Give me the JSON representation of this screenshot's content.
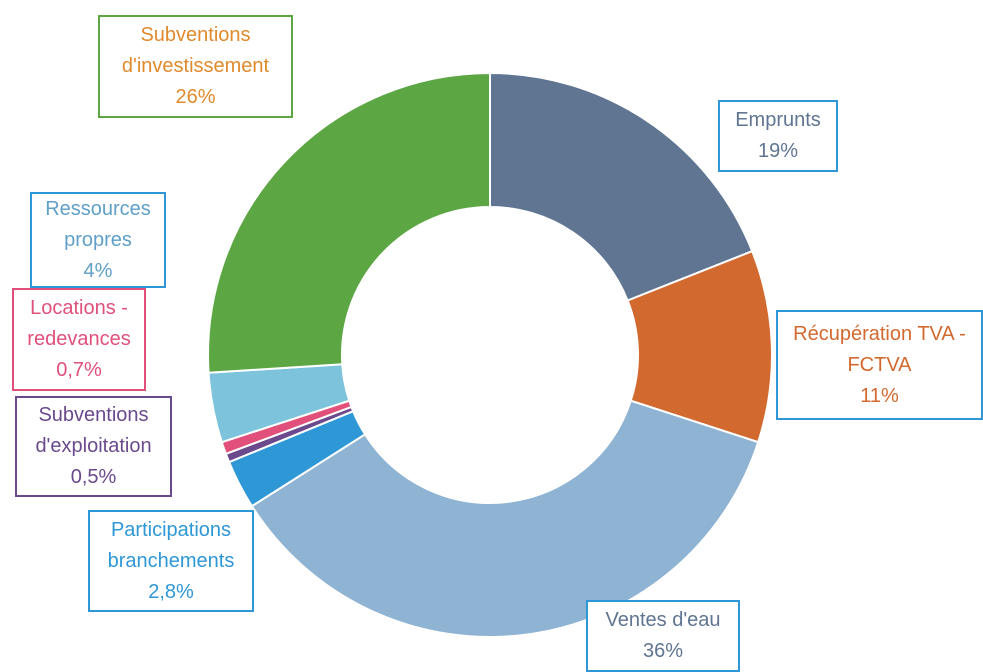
{
  "chart_data": {
    "type": "donut",
    "categories": [
      "Emprunts",
      "Récupération TVA - FCTVA",
      "Ventes d'eau",
      "Participations branchements",
      "Subventions d'exploitation",
      "Locations - redevances",
      "Ressources propres",
      "Subventions d'investissement"
    ],
    "values": [
      19,
      11,
      36,
      2.8,
      0.5,
      0.7,
      4,
      26
    ],
    "value_labels": [
      "19%",
      "11%",
      "36%",
      "2,8%",
      "0,5%",
      "0,7%",
      "4%",
      "26%"
    ],
    "colors": [
      "#5f7591",
      "#d2692f",
      "#8fb3d3",
      "#2e97d6",
      "#6a4a8c",
      "#e0507a",
      "#7ec3dc",
      "#5ca744"
    ]
  }
}
